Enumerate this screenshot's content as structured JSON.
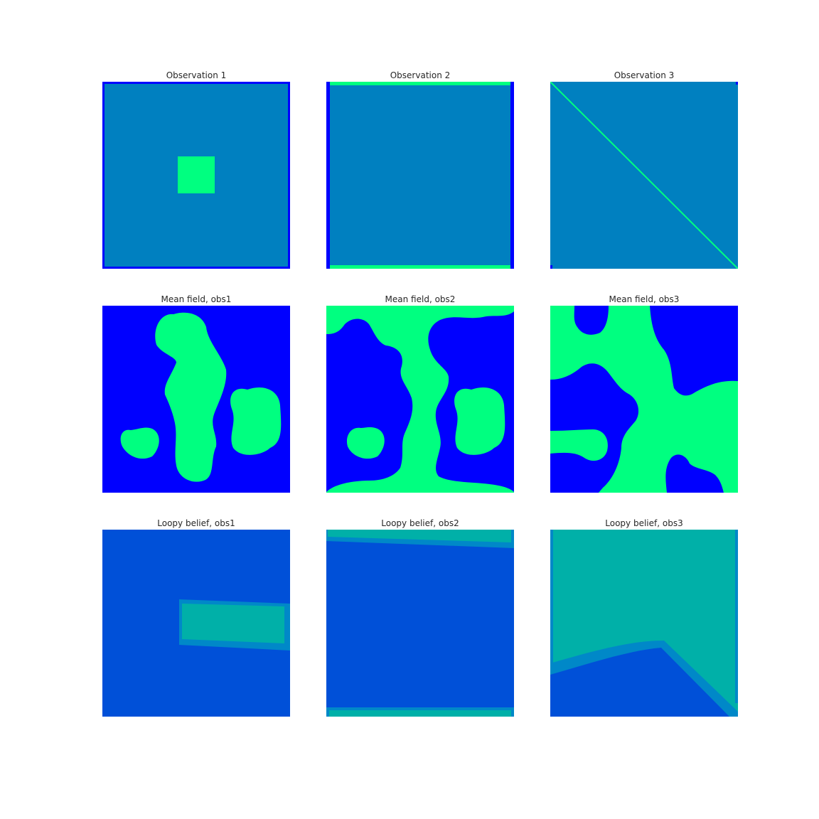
{
  "figure": {
    "panels": [
      {
        "title": "Observation 1",
        "image": "observation-1"
      },
      {
        "title": "Observation 2",
        "image": "observation-2"
      },
      {
        "title": "Observation 3",
        "image": "observation-3"
      },
      {
        "title": "Mean field, obs1",
        "image": "mean-field-obs1"
      },
      {
        "title": "Mean field, obs2",
        "image": "mean-field-obs2"
      },
      {
        "title": "Mean field, obs3",
        "image": "mean-field-obs3"
      },
      {
        "title": "Loopy belief, obs1",
        "image": "loopy-belief-obs1"
      },
      {
        "title": "Loopy belief, obs2",
        "image": "loopy-belief-obs2"
      },
      {
        "title": "Loopy belief, obs3",
        "image": "loopy-belief-obs3"
      }
    ]
  },
  "colors": {
    "background": "#ffffff",
    "neutral": "#0080c0",
    "blue": "#0000ff",
    "green": "#00ff80",
    "loopy_blue": "#0050d8",
    "loopy_teal": "#00b0a8",
    "loopy_mid": "#0088c8",
    "title_text": "#262626"
  }
}
